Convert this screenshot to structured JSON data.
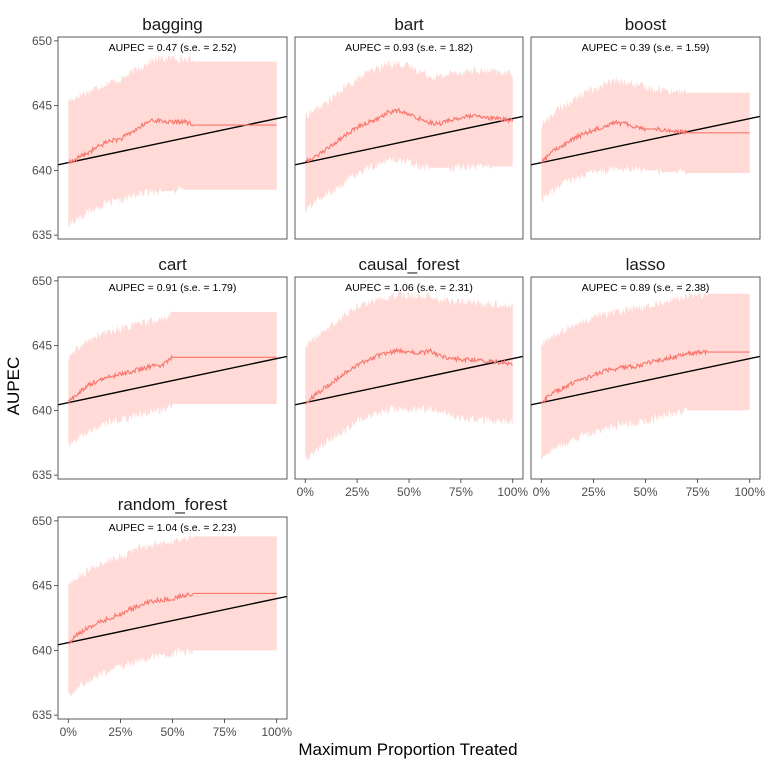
{
  "chart_data": {
    "type": "area",
    "xlabel": "Maximum Proportion Treated",
    "ylabel": "AUPEC",
    "xlim": [
      0,
      1
    ],
    "ylim": [
      634.7,
      650.3
    ],
    "x_ticks": [
      "0%",
      "25%",
      "50%",
      "75%",
      "100%"
    ],
    "y_ticks": [
      635,
      640,
      645,
      650
    ],
    "colors": {
      "band": "#ffdad6",
      "curve": "#f8766d",
      "baseline": "#000000",
      "border": "#333333"
    },
    "baseline": {
      "x": [
        0,
        1
      ],
      "y": [
        640.6,
        644.0
      ]
    },
    "panels": [
      {
        "name": "bagging",
        "annotation": "AUPEC = 0.47 (s.e. = 2.52)",
        "x": [
          0,
          0.02,
          0.05,
          0.1,
          0.15,
          0.2,
          0.25,
          0.3,
          0.35,
          0.4,
          0.45,
          0.5,
          0.55,
          0.6,
          0.65,
          0.7,
          0.8,
          0.9,
          1.0
        ],
        "mean": [
          640.6,
          640.7,
          641.0,
          641.4,
          641.9,
          642.3,
          642.4,
          642.9,
          643.4,
          643.9,
          643.8,
          643.7,
          643.8,
          643.5,
          643.5,
          643.5,
          643.5,
          643.5,
          643.5
        ],
        "lower": [
          635.8,
          636.0,
          636.4,
          636.8,
          637.2,
          637.5,
          637.6,
          638.0,
          638.2,
          638.4,
          638.4,
          638.4,
          638.5,
          638.5,
          638.5,
          638.5,
          638.5,
          638.5,
          638.5
        ],
        "upper": [
          645.4,
          645.5,
          645.8,
          646.1,
          646.5,
          646.8,
          647.0,
          647.5,
          648.0,
          648.5,
          648.6,
          648.7,
          648.6,
          648.4,
          648.4,
          648.4,
          648.4,
          648.4,
          648.4
        ]
      },
      {
        "name": "bart",
        "annotation": "AUPEC = 0.93 (s.e. = 1.82)",
        "x": [
          0,
          0.02,
          0.05,
          0.1,
          0.15,
          0.2,
          0.25,
          0.3,
          0.35,
          0.4,
          0.45,
          0.5,
          0.55,
          0.6,
          0.65,
          0.7,
          0.8,
          0.9,
          1.0
        ],
        "mean": [
          640.6,
          640.8,
          641.1,
          641.6,
          642.2,
          642.8,
          643.3,
          643.7,
          644.0,
          644.5,
          644.6,
          644.3,
          644.0,
          643.7,
          643.6,
          643.9,
          644.2,
          644.0,
          643.9
        ],
        "lower": [
          637.0,
          637.2,
          637.6,
          638.1,
          638.6,
          639.2,
          639.7,
          640.2,
          640.4,
          640.8,
          640.8,
          640.6,
          640.4,
          640.2,
          640.2,
          640.2,
          640.4,
          640.3,
          640.3
        ],
        "upper": [
          644.2,
          644.4,
          644.7,
          645.2,
          645.8,
          646.5,
          647.0,
          647.5,
          647.9,
          648.2,
          648.3,
          648.0,
          647.7,
          647.3,
          647.2,
          647.5,
          647.7,
          647.6,
          647.5
        ]
      },
      {
        "name": "boost",
        "annotation": "AUPEC = 0.39 (s.e. = 1.59)",
        "x": [
          0,
          0.02,
          0.05,
          0.1,
          0.15,
          0.2,
          0.25,
          0.3,
          0.35,
          0.4,
          0.45,
          0.5,
          0.55,
          0.6,
          0.65,
          0.7,
          0.8,
          0.9,
          1.0
        ],
        "mean": [
          640.6,
          640.9,
          641.4,
          641.9,
          642.4,
          642.8,
          643.1,
          643.4,
          643.7,
          643.6,
          643.4,
          643.2,
          643.2,
          643.1,
          643.0,
          642.9,
          642.9,
          642.9,
          642.9
        ],
        "lower": [
          637.7,
          638.0,
          638.4,
          638.9,
          639.3,
          639.6,
          639.8,
          640.0,
          640.2,
          640.2,
          640.1,
          640.0,
          640.0,
          639.9,
          639.9,
          639.8,
          639.8,
          639.8,
          639.8
        ],
        "upper": [
          643.5,
          643.8,
          644.3,
          644.9,
          645.4,
          645.9,
          646.3,
          646.6,
          646.9,
          646.8,
          646.6,
          646.4,
          646.3,
          646.2,
          646.1,
          646.0,
          646.0,
          646.0,
          646.0
        ]
      },
      {
        "name": "cart",
        "annotation": "AUPEC = 0.91 (s.e. = 1.79)",
        "x": [
          0,
          0.02,
          0.05,
          0.1,
          0.15,
          0.2,
          0.25,
          0.3,
          0.35,
          0.4,
          0.45,
          0.5,
          0.55,
          0.6,
          0.65,
          0.7,
          0.8,
          0.9,
          1.0
        ],
        "mean": [
          640.6,
          640.9,
          641.4,
          642.0,
          642.3,
          642.6,
          642.8,
          643.0,
          643.2,
          643.4,
          643.5,
          644.1,
          644.1,
          644.1,
          644.1,
          644.1,
          644.1,
          644.1,
          644.1
        ],
        "lower": [
          637.2,
          637.5,
          637.9,
          638.4,
          638.8,
          639.1,
          639.3,
          639.5,
          639.7,
          639.9,
          640.0,
          640.5,
          640.5,
          640.5,
          640.5,
          640.5,
          640.5,
          640.5,
          640.5
        ],
        "upper": [
          644.0,
          644.3,
          644.8,
          645.4,
          645.8,
          646.1,
          646.3,
          646.5,
          646.7,
          646.9,
          647.0,
          647.6,
          647.6,
          647.6,
          647.6,
          647.6,
          647.6,
          647.6,
          647.6
        ]
      },
      {
        "name": "causal_forest",
        "annotation": "AUPEC = 1.06 (s.e. = 2.31)",
        "x": [
          0,
          0.02,
          0.05,
          0.1,
          0.15,
          0.2,
          0.25,
          0.3,
          0.35,
          0.4,
          0.45,
          0.5,
          0.55,
          0.6,
          0.65,
          0.7,
          0.8,
          0.9,
          1.0
        ],
        "mean": [
          640.6,
          640.8,
          641.2,
          641.8,
          642.4,
          643.0,
          643.5,
          643.9,
          644.2,
          644.4,
          644.6,
          644.5,
          644.4,
          644.6,
          644.2,
          644.0,
          643.9,
          643.8,
          643.6
        ],
        "lower": [
          636.2,
          636.4,
          636.8,
          637.5,
          638.1,
          638.6,
          639.2,
          639.6,
          639.8,
          640.0,
          640.2,
          640.1,
          640.0,
          640.2,
          639.8,
          639.6,
          639.3,
          639.2,
          639.1
        ],
        "upper": [
          645.0,
          645.2,
          645.6,
          646.3,
          646.9,
          647.5,
          648.0,
          648.3,
          648.6,
          648.8,
          649.0,
          648.9,
          648.8,
          648.9,
          648.6,
          648.4,
          648.3,
          648.2,
          648.1
        ]
      },
      {
        "name": "lasso",
        "annotation": "AUPEC = 0.89 (s.e. = 2.38)",
        "x": [
          0,
          0.02,
          0.05,
          0.1,
          0.15,
          0.2,
          0.25,
          0.3,
          0.35,
          0.4,
          0.45,
          0.5,
          0.55,
          0.6,
          0.65,
          0.7,
          0.8,
          0.9,
          1.0
        ],
        "mean": [
          640.6,
          640.9,
          641.3,
          641.7,
          642.1,
          642.4,
          642.7,
          643.0,
          643.2,
          643.3,
          643.4,
          643.6,
          643.8,
          644.0,
          644.2,
          644.4,
          644.5,
          644.5,
          644.5
        ],
        "lower": [
          636.2,
          636.5,
          636.9,
          637.3,
          637.7,
          638.0,
          638.3,
          638.6,
          638.8,
          638.9,
          639.0,
          639.2,
          639.4,
          639.6,
          639.8,
          640.0,
          640.0,
          640.0,
          640.0
        ],
        "upper": [
          645.0,
          645.3,
          645.7,
          646.1,
          646.5,
          646.8,
          647.1,
          647.4,
          647.6,
          647.7,
          647.8,
          648.0,
          648.2,
          648.4,
          648.6,
          648.8,
          649.0,
          649.0,
          649.0
        ]
      },
      {
        "name": "random_forest",
        "annotation": "AUPEC = 1.04 (s.e. = 2.23)",
        "x": [
          0,
          0.02,
          0.05,
          0.1,
          0.15,
          0.2,
          0.25,
          0.3,
          0.35,
          0.4,
          0.45,
          0.5,
          0.55,
          0.6,
          0.65,
          0.7,
          0.8,
          0.9,
          1.0
        ],
        "mean": [
          640.6,
          640.9,
          641.3,
          641.8,
          642.2,
          642.5,
          642.8,
          643.2,
          643.5,
          643.8,
          643.9,
          644.0,
          644.2,
          644.4,
          644.4,
          644.4,
          644.4,
          644.4,
          644.4
        ],
        "lower": [
          636.5,
          636.8,
          637.2,
          637.7,
          638.1,
          638.4,
          638.7,
          639.0,
          639.3,
          639.5,
          639.6,
          639.7,
          639.9,
          640.0,
          640.0,
          640.0,
          640.0,
          640.0,
          640.0
        ],
        "upper": [
          645.0,
          645.3,
          645.7,
          646.2,
          646.6,
          646.9,
          647.2,
          647.6,
          647.9,
          648.2,
          648.3,
          648.4,
          648.6,
          648.8,
          648.8,
          648.8,
          648.8,
          648.8,
          648.8
        ]
      }
    ]
  }
}
